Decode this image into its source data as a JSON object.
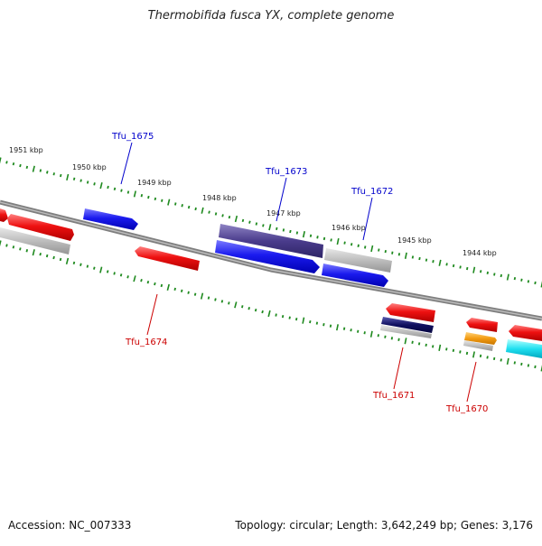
{
  "title": "Thermobifida fusca YX, complete genome",
  "footer": {
    "accession": "Accession: NC_007333",
    "topology": "Topology: circular; Length: 3,642,249 bp; Genes: 3,176"
  },
  "colors": {
    "backbone": "#7f7f7f",
    "tick": "#1f8a1f",
    "label_forward": "#0000cc",
    "label_reverse": "#cc0000",
    "gene_red": "#ee1111",
    "gene_blue": "#1a1aee",
    "gene_navy": "#4a3c8c",
    "gene_dark_navy": "#101060",
    "gene_gray": "#b8b8b8",
    "gene_orange": "#f39c12",
    "gene_cyan": "#20e0f0"
  },
  "scale_labels": [
    "1951 kbp",
    "1950 kbp",
    "1949 kbp",
    "1948 kbp",
    "1947 kbp",
    "1946 kbp",
    "1945 kbp",
    "1944 kbp"
  ],
  "gene_labels": [
    "Tfu_1675",
    "Tfu_1673",
    "Tfu_1672",
    "Tfu_1674",
    "Tfu_1671",
    "Tfu_1670"
  ]
}
